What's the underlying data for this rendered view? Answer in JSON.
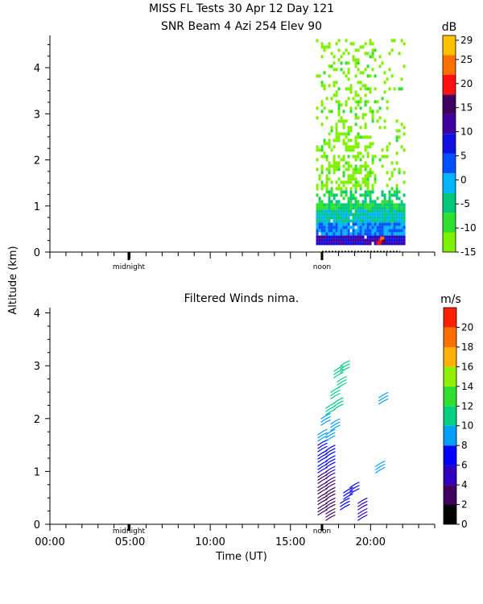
{
  "chart_data": [
    {
      "type": "heatmap",
      "title": "MISS FL Tests  30 Apr 12 Day 121",
      "subtitle": "SNR Beam 4 Azi 254 Elev 90",
      "ylabel": "Altitude (km)",
      "xlim": [
        0,
        24
      ],
      "ylim": [
        0,
        4.7
      ],
      "yticks": [
        "0",
        "1",
        "2",
        "3",
        "4"
      ],
      "markers": [
        "midnight",
        "noon"
      ],
      "colorbar": {
        "unit": "dB",
        "ticks": [
          "29",
          "25",
          "20",
          "15",
          "10",
          "5",
          "0",
          "-5",
          "-10",
          "-15"
        ],
        "colors": [
          "#7ef000",
          "#30e030",
          "#00c878",
          "#00b4ff",
          "#0050ff",
          "#1010e0",
          "#4000a0",
          "#400060",
          "#ff1010",
          "#ff7000",
          "#ffc000"
        ]
      },
      "series": [
        {
          "x_start": 16.6,
          "x_end": 22.1,
          "y_start": 0.15,
          "y_end": 4.6
        }
      ]
    },
    {
      "type": "scatter",
      "title": "Filtered Winds nima.",
      "xlabel": "Time (UT)",
      "xlim": [
        0,
        24
      ],
      "ylim": [
        0,
        4.1
      ],
      "xticks": [
        "00:00",
        "05:00",
        "10:00",
        "15:00",
        "20:00"
      ],
      "yticks": [
        "0",
        "1",
        "2",
        "3",
        "4"
      ],
      "markers": [
        "midnight",
        "noon"
      ],
      "colorbar": {
        "unit": "m/s",
        "ticks": [
          "20",
          "18",
          "16",
          "14",
          "12",
          "10",
          "8",
          "6",
          "4",
          "2",
          "0"
        ],
        "colors": [
          "#000000",
          "#400060",
          "#3000c0",
          "#0000ff",
          "#00a0ff",
          "#00d080",
          "#30e030",
          "#90f000",
          "#ffb000",
          "#ff7000",
          "#ff2000"
        ]
      },
      "series": [
        {
          "name": "",
          "points": [
            {
              "t": 17.0,
              "alt": 0.2,
              "ws": 3
            },
            {
              "t": 17.0,
              "alt": 0.4,
              "ws": 3
            },
            {
              "t": 17.0,
              "alt": 0.6,
              "ws": 3
            },
            {
              "t": 17.0,
              "alt": 0.8,
              "ws": 3
            },
            {
              "t": 17.5,
              "alt": 0.1,
              "ws": 2
            },
            {
              "t": 17.5,
              "alt": 0.3,
              "ws": 3
            },
            {
              "t": 17.5,
              "alt": 0.5,
              "ws": 3
            },
            {
              "t": 17.5,
              "alt": 0.7,
              "ws": 3
            },
            {
              "t": 17.5,
              "alt": 0.9,
              "ws": 4
            },
            {
              "t": 17.0,
              "alt": 1.0,
              "ws": 6
            },
            {
              "t": 17.0,
              "alt": 1.2,
              "ws": 6
            },
            {
              "t": 17.0,
              "alt": 1.4,
              "ws": 7
            },
            {
              "t": 17.5,
              "alt": 1.1,
              "ws": 6
            },
            {
              "t": 17.5,
              "alt": 1.3,
              "ws": 7
            },
            {
              "t": 17.0,
              "alt": 1.6,
              "ws": 8
            },
            {
              "t": 17.5,
              "alt": 1.6,
              "ws": 8
            },
            {
              "t": 17.8,
              "alt": 1.8,
              "ws": 9
            },
            {
              "t": 17.2,
              "alt": 1.9,
              "ws": 9
            },
            {
              "t": 17.5,
              "alt": 2.1,
              "ws": 10
            },
            {
              "t": 18.0,
              "alt": 2.2,
              "ws": 10
            },
            {
              "t": 17.8,
              "alt": 2.4,
              "ws": 10
            },
            {
              "t": 18.2,
              "alt": 2.6,
              "ws": 11
            },
            {
              "t": 18.0,
              "alt": 2.8,
              "ws": 11
            },
            {
              "t": 18.4,
              "alt": 2.9,
              "ws": 11
            },
            {
              "t": 18.6,
              "alt": 0.5,
              "ws": 6
            },
            {
              "t": 19.0,
              "alt": 0.6,
              "ws": 6
            },
            {
              "t": 18.4,
              "alt": 0.3,
              "ws": 6
            },
            {
              "t": 19.5,
              "alt": 0.1,
              "ws": 4
            },
            {
              "t": 19.5,
              "alt": 0.3,
              "ws": 4
            },
            {
              "t": 20.6,
              "alt": 1.0,
              "ws": 9
            },
            {
              "t": 20.8,
              "alt": 2.3,
              "ws": 8
            }
          ]
        }
      ]
    }
  ]
}
